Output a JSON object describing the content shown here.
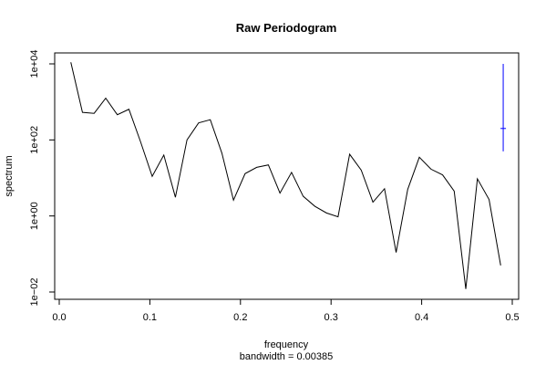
{
  "chart_data": {
    "type": "line",
    "title": "Raw Periodogram",
    "xlabel": "frequency",
    "xsublabel": "bandwidth = 0.00385",
    "ylabel": "spectrum",
    "log_y": true,
    "xlim": [
      0,
      0.5
    ],
    "ylim": [
      0.01,
      10000
    ],
    "x_ticks": [
      0.0,
      0.1,
      0.2,
      0.3,
      0.4,
      0.5
    ],
    "x_tick_labels": [
      "0.0",
      "0.1",
      "0.2",
      "0.3",
      "0.4",
      "0.5"
    ],
    "y_ticks": [
      0.01,
      1,
      100,
      10000
    ],
    "y_tick_labels": [
      "1e−02",
      "1e+00",
      "1e+02",
      "1e+04"
    ],
    "grid": false,
    "series": [
      {
        "color": "#000000",
        "x": [
          0.0128,
          0.0256,
          0.0385,
          0.0513,
          0.0641,
          0.0769,
          0.0897,
          0.1026,
          0.1154,
          0.1282,
          0.141,
          0.1538,
          0.1667,
          0.1795,
          0.1923,
          0.2051,
          0.2179,
          0.2308,
          0.2436,
          0.2564,
          0.2692,
          0.2821,
          0.2949,
          0.3077,
          0.3205,
          0.3333,
          0.3462,
          0.359,
          0.3718,
          0.3846,
          0.3974,
          0.4103,
          0.4231,
          0.4359,
          0.4487,
          0.4615,
          0.4744,
          0.4872
        ],
        "y": [
          11000,
          530,
          500,
          1250,
          460,
          640,
          90,
          11,
          40,
          3.1,
          100,
          280,
          340,
          45,
          2.6,
          13,
          19,
          22,
          4,
          14,
          3.3,
          1.8,
          1.2,
          0.95,
          42,
          16,
          2.3,
          5.2,
          0.11,
          5,
          35,
          17,
          12,
          4.5,
          0.012,
          9.5,
          2.7,
          0.05
        ]
      }
    ],
    "ci_bar": {
      "color": "#0000ff",
      "x": 0.49,
      "center": 200,
      "lower": 50,
      "upper": 10000
    }
  }
}
